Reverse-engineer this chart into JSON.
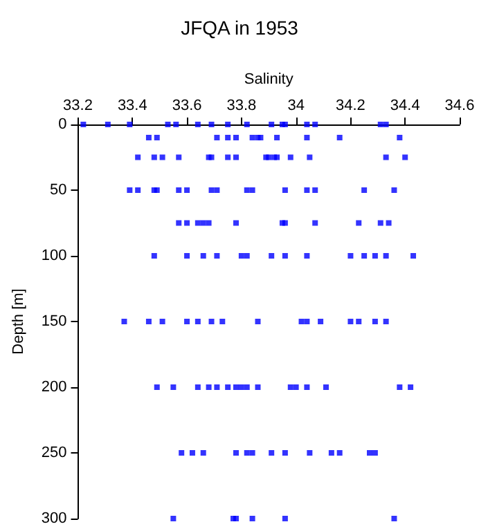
{
  "chart_data": {
    "type": "scatter",
    "title": "JFQA in 1953",
    "xlabel": "Salinity",
    "ylabel": "Depth [m]",
    "x": [
      33.22,
      33.31,
      33.39,
      33.53,
      33.56,
      33.64,
      33.69,
      33.75,
      33.82,
      33.91,
      33.95,
      33.96,
      34.04,
      34.07,
      34.31,
      34.33,
      33.46,
      33.49,
      33.71,
      33.75,
      33.78,
      33.84,
      33.86,
      33.87,
      33.93,
      34.04,
      34.16,
      34.38,
      33.42,
      33.48,
      33.51,
      33.57,
      33.68,
      33.69,
      33.75,
      33.78,
      33.89,
      33.9,
      33.92,
      33.93,
      33.98,
      34.05,
      34.33,
      34.4,
      33.39,
      33.42,
      33.48,
      33.49,
      33.57,
      33.6,
      33.69,
      33.71,
      33.82,
      33.84,
      33.96,
      34.04,
      34.07,
      34.25,
      34.36,
      33.57,
      33.6,
      33.64,
      33.66,
      33.68,
      33.78,
      33.95,
      33.96,
      34.07,
      34.23,
      34.31,
      34.34,
      33.48,
      33.6,
      33.66,
      33.71,
      33.8,
      33.82,
      33.91,
      33.96,
      34.04,
      34.2,
      34.25,
      34.29,
      34.33,
      34.43,
      33.37,
      33.46,
      33.51,
      33.6,
      33.64,
      33.69,
      33.73,
      33.86,
      34.02,
      34.04,
      34.09,
      34.2,
      34.23,
      34.29,
      34.33,
      33.49,
      33.55,
      33.64,
      33.68,
      33.71,
      33.75,
      33.78,
      33.8,
      33.82,
      33.86,
      33.98,
      34.0,
      34.04,
      34.11,
      34.38,
      34.42,
      33.58,
      33.62,
      33.66,
      33.78,
      33.82,
      33.84,
      33.91,
      33.96,
      34.05,
      34.13,
      34.16,
      34.27,
      34.29,
      33.55,
      33.77,
      33.78,
      33.84,
      33.96,
      34.36
    ],
    "values": [
      0,
      0,
      0,
      0,
      0,
      0,
      0,
      0,
      0,
      0,
      0,
      0,
      0,
      0,
      0,
      0,
      10,
      10,
      10,
      10,
      10,
      10,
      10,
      10,
      10,
      10,
      10,
      10,
      25,
      25,
      25,
      25,
      25,
      25,
      25,
      25,
      25,
      25,
      25,
      25,
      25,
      25,
      25,
      25,
      50,
      50,
      50,
      50,
      50,
      50,
      50,
      50,
      50,
      50,
      50,
      50,
      50,
      50,
      50,
      75,
      75,
      75,
      75,
      75,
      75,
      75,
      75,
      75,
      75,
      75,
      75,
      100,
      100,
      100,
      100,
      100,
      100,
      100,
      100,
      100,
      100,
      100,
      100,
      100,
      100,
      150,
      150,
      150,
      150,
      150,
      150,
      150,
      150,
      150,
      150,
      150,
      150,
      150,
      150,
      150,
      200,
      200,
      200,
      200,
      200,
      200,
      200,
      200,
      200,
      200,
      200,
      200,
      200,
      200,
      200,
      200,
      250,
      250,
      250,
      250,
      250,
      250,
      250,
      250,
      250,
      250,
      250,
      250,
      250,
      300,
      300,
      300,
      300,
      300,
      300
    ],
    "color": "#0000ff",
    "marker": "square",
    "xlim": [
      33.2,
      34.6
    ],
    "xticks": [
      33.2,
      33.4,
      33.6,
      33.8,
      34,
      34.2,
      34.4,
      34.6
    ],
    "ylim": [
      300,
      0
    ],
    "yticks": [
      0,
      50,
      100,
      150,
      200,
      250,
      300
    ]
  }
}
